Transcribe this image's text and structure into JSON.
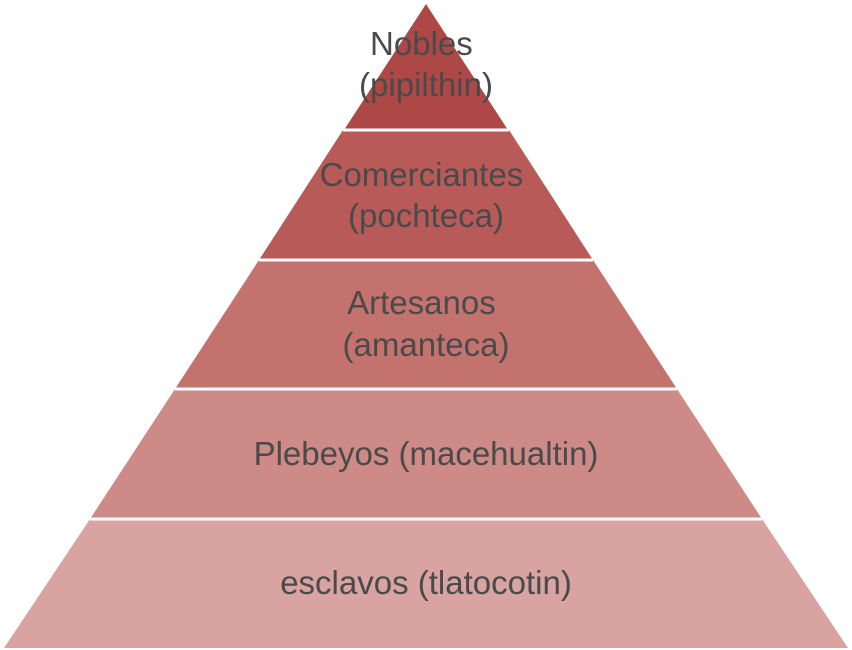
{
  "pyramid": {
    "tiers": [
      {
        "lines": [
          "Nobles",
          "(pipilthin)"
        ],
        "color": "#ad4846"
      },
      {
        "lines": [
          "Comerciantes",
          "(pochteca)"
        ],
        "color": "#b85a57"
      },
      {
        "lines": [
          "Artesanos",
          "(amanteca)"
        ],
        "color": "#c4726e"
      },
      {
        "lines": [
          "Plebeyos (macehualtin)"
        ],
        "color": "#cd8a86"
      },
      {
        "lines": [
          "esclavos (tlatocotin)"
        ],
        "color": "#d8a3a1"
      }
    ],
    "text_color": "#4a4a4a",
    "separator_color": "#ffffff"
  }
}
